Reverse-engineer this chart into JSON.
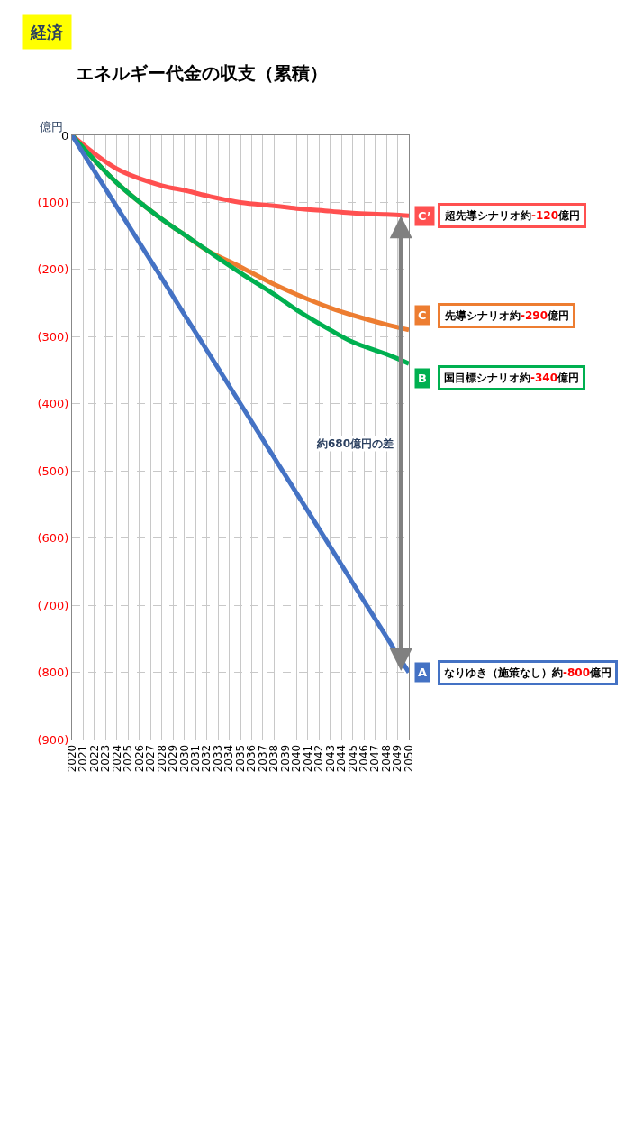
{
  "chart_data": {
    "type": "line",
    "title": "エネルギー代金の収支（累積）",
    "ylabel": "億円",
    "x": [
      2020,
      2024,
      2028,
      2030,
      2032,
      2035,
      2038,
      2040,
      2043,
      2045,
      2048,
      2050
    ],
    "series": [
      {
        "name": "C’",
        "color": "#ff5050",
        "values": [
          0,
          -50,
          -75,
          -82,
          -90,
          -100,
          -105,
          -109,
          -113,
          -116,
          -118,
          -120
        ]
      },
      {
        "name": "C",
        "color": "#ed7d31",
        "values": [
          0,
          -71,
          -125,
          -148,
          -171,
          -196,
          -222,
          -237,
          -257,
          -268,
          -282,
          -290
        ]
      },
      {
        "name": "B",
        "color": "#00b050",
        "values": [
          0,
          -71,
          -125,
          -148,
          -171,
          -205,
          -237,
          -260,
          -290,
          -308,
          -326,
          -340
        ]
      },
      {
        "name": "A",
        "color": "#4472c4",
        "values": [
          0,
          -107,
          -213,
          -267,
          -320,
          -400,
          -480,
          -533,
          -613,
          -667,
          -747,
          -800
        ]
      }
    ],
    "annotations": [
      "超先導シナリオ約-120億円",
      "先導シナリオ約-290億円",
      "国目標シナリオ約-340億円",
      "なりゆき（施策なし）約-800億円",
      "経済",
      "約680億円の差"
    ],
    "xlim": [
      2020,
      2050
    ],
    "xticks": [
      2020,
      2021,
      2022,
      2023,
      2024,
      2025,
      2026,
      2027,
      2028,
      2029,
      2030,
      2031,
      2032,
      2033,
      2034,
      2035,
      2036,
      2037,
      2038,
      2039,
      2040,
      2041,
      2042,
      2043,
      2044,
      2045,
      2046,
      2047,
      2048,
      2049,
      2050
    ],
    "ylim": [
      -900,
      0
    ],
    "yticks": [
      {
        "value": 0,
        "label": "0"
      },
      {
        "value": -100,
        "label": "(100)"
      },
      {
        "value": -200,
        "label": "(200)"
      },
      {
        "value": -300,
        "label": "(300)"
      },
      {
        "value": -400,
        "label": "(400)"
      },
      {
        "value": -500,
        "label": "(500)"
      },
      {
        "value": -600,
        "label": "(600)"
      },
      {
        "value": -700,
        "label": "(700)"
      },
      {
        "value": -800,
        "label": "(800)"
      },
      {
        "value": -900,
        "label": "(900)"
      }
    ],
    "grid": true,
    "marker": "none",
    "line_style": "solid"
  }
}
